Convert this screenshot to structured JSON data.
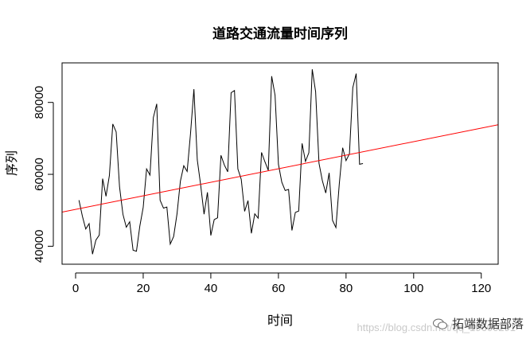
{
  "chart_data": {
    "type": "line",
    "title": "道路交通流量时间序列",
    "xlabel": "时间",
    "ylabel": "序列",
    "xlim": [
      -4,
      125
    ],
    "ylim": [
      35000,
      91000
    ],
    "xticks": [
      0,
      20,
      40,
      60,
      80,
      100,
      120
    ],
    "yticks": [
      40000,
      60000,
      80000
    ],
    "grid": false,
    "series": [
      {
        "color": "#000000",
        "x": [
          1,
          2,
          3,
          4,
          5,
          6,
          7,
          8,
          9,
          10,
          11,
          12,
          13,
          14,
          15,
          16,
          17,
          18,
          19,
          20,
          21,
          22,
          23,
          24,
          25,
          26,
          27,
          28,
          29,
          30,
          31,
          32,
          33,
          34,
          35,
          36,
          37,
          38,
          39,
          40,
          41,
          42,
          43,
          44,
          45,
          46,
          47,
          48,
          49,
          50,
          51,
          52,
          53,
          54,
          55,
          56,
          57,
          58,
          59,
          60,
          61,
          62,
          63,
          64,
          65,
          66,
          67,
          68,
          69,
          70,
          71,
          72,
          73,
          74,
          75,
          76,
          77,
          78,
          79,
          80,
          81,
          82,
          83,
          84,
          85
        ],
        "values": [
          52800,
          48400,
          44800,
          46300,
          37800,
          41700,
          43100,
          58800,
          53900,
          59700,
          74000,
          71800,
          56500,
          48900,
          45300,
          46800,
          38900,
          38600,
          45600,
          50800,
          61500,
          59800,
          75800,
          79600,
          52800,
          50600,
          50900,
          40600,
          42700,
          49000,
          58100,
          62400,
          60800,
          71400,
          83700,
          64000,
          57000,
          48900,
          55000,
          43000,
          47400,
          47900,
          65300,
          62600,
          60700,
          82700,
          83300,
          61500,
          58600,
          49700,
          52700,
          43600,
          49000,
          47800,
          66100,
          63500,
          61100,
          87300,
          82000,
          62800,
          57800,
          55500,
          55800,
          44400,
          49400,
          49800,
          68600,
          63600,
          66000,
          89200,
          83000,
          63100,
          58200,
          54800,
          60400,
          47200,
          45200,
          57300,
          67400,
          63800,
          65700,
          84100,
          88000,
          62800,
          63000
        ]
      },
      {
        "color": "#ff0000",
        "x": [
          -4,
          125
        ],
        "values": [
          49500,
          73800
        ]
      }
    ]
  },
  "watermark": {
    "url": "https://blog.csdn.net/qq_19600291",
    "brand": "拓端数据部落",
    "icon": "wechat-icon"
  }
}
